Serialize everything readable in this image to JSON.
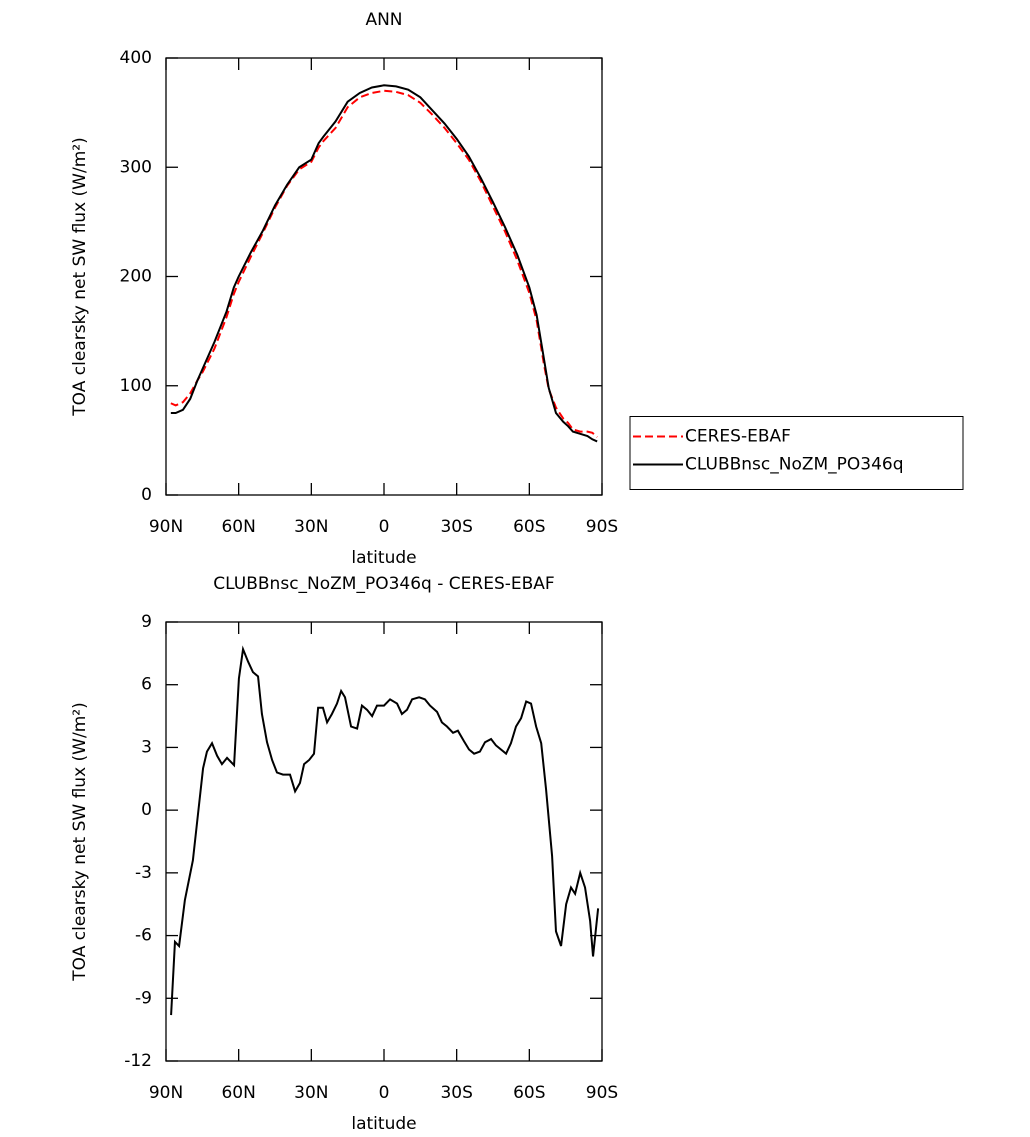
{
  "chart_data": [
    {
      "type": "line",
      "title": "ANN",
      "xlabel": "latitude",
      "ylabel": "TOA clearsky net SW flux (W/m²)",
      "x": [
        88,
        86,
        83,
        80,
        77,
        75,
        70,
        65,
        62,
        60,
        55,
        50,
        45,
        40,
        35,
        30,
        27,
        25,
        20,
        15,
        10,
        5,
        0,
        -5,
        -10,
        -15,
        -20,
        -25,
        -30,
        -35,
        -40,
        -45,
        -50,
        -55,
        -60,
        -63,
        -66,
        -68,
        -71,
        -74,
        -76,
        -78,
        -81,
        -84,
        -86,
        -88
      ],
      "series": [
        {
          "name": "CERES-EBAF",
          "color": "#ff0000",
          "line_style": "dashed",
          "values": [
            84,
            82,
            85,
            93,
            105,
            112,
            134,
            163,
            184,
            195,
            218,
            240,
            263,
            283,
            298,
            305,
            318,
            324,
            336,
            355,
            364,
            368,
            370,
            369,
            366,
            359,
            348,
            336,
            322,
            307,
            287,
            264,
            241,
            215,
            185,
            160,
            120,
            97,
            80,
            70,
            66,
            60,
            58,
            58,
            57,
            53
          ]
        },
        {
          "name": "CLUBBnsc_NoZM_PO346q",
          "color": "#000000",
          "line_style": "solid",
          "values": [
            75,
            75,
            78,
            88,
            105,
            115,
            140,
            168,
            190,
            200,
            222,
            242,
            265,
            284,
            300,
            307,
            322,
            328,
            342,
            360,
            368,
            373,
            375,
            374,
            371,
            364,
            352,
            340,
            326,
            310,
            290,
            268,
            245,
            220,
            190,
            165,
            125,
            98,
            75,
            67,
            63,
            58,
            56,
            54,
            51,
            49
          ]
        }
      ],
      "xlim": [
        90,
        -90
      ],
      "xticks": [
        {
          "value": 90,
          "label": "90N"
        },
        {
          "value": 60,
          "label": "60N"
        },
        {
          "value": 30,
          "label": "30N"
        },
        0,
        {
          "value": -30,
          "label": "30S"
        },
        {
          "value": -60,
          "label": "60S"
        },
        {
          "value": -90,
          "label": "90S"
        }
      ],
      "ylim": [
        0,
        400
      ],
      "yticks": [
        0,
        100,
        200,
        300,
        400
      ],
      "grid": false,
      "legend": "right"
    },
    {
      "type": "line",
      "title": "CLUBBnsc_NoZM_PO346q - CERES-EBAF",
      "xlabel": "latitude",
      "ylabel": "TOA clearsky net SW flux (W/m²)",
      "x": [
        87.9,
        86.3,
        84.6,
        82.2,
        78.9,
        76.8,
        74.7,
        73.1,
        71.0,
        68.9,
        66.9,
        64.8,
        61.9,
        59.9,
        58.2,
        56.1,
        54.1,
        52.0,
        50.4,
        48.3,
        46.2,
        44.2,
        41.7,
        38.8,
        36.7,
        34.7,
        33.0,
        30.9,
        28.9,
        27.2,
        25.2,
        23.5,
        21.5,
        19.4,
        17.7,
        16.1,
        13.6,
        11.1,
        9.1,
        7.0,
        4.9,
        2.9,
        0,
        -2.5,
        -5.4,
        -7.4,
        -9.5,
        -11.6,
        -14.5,
        -16.9,
        -19.0,
        -21.9,
        -23.9,
        -26.0,
        -28.5,
        -30.5,
        -33.0,
        -35.1,
        -37.2,
        -39.6,
        -41.7,
        -44.2,
        -46.2,
        -48.3,
        -50.4,
        -52.4,
        -54.5,
        -56.6,
        -58.7,
        -60.7,
        -62.8,
        -64.9,
        -66.9,
        -69.4,
        -71.0,
        -73.1,
        -75.2,
        -77.2,
        -78.9,
        -81.0,
        -83.0,
        -85.1,
        -86.3,
        -88.4
      ],
      "values": [
        -9.8,
        -6.3,
        -6.5,
        -4.3,
        -2.4,
        -0.2,
        2.0,
        2.8,
        3.2,
        2.6,
        2.2,
        2.5,
        2.15,
        6.3,
        7.7,
        7.1,
        6.6,
        6.4,
        4.6,
        3.25,
        2.4,
        1.8,
        1.7,
        1.7,
        0.9,
        1.3,
        2.2,
        2.4,
        2.7,
        4.9,
        4.9,
        4.2,
        4.6,
        5.1,
        5.7,
        5.4,
        4.0,
        3.9,
        5.0,
        4.8,
        4.5,
        5.0,
        5.0,
        5.3,
        5.1,
        4.6,
        4.8,
        5.3,
        5.4,
        5.3,
        5.0,
        4.7,
        4.2,
        4.0,
        3.7,
        3.8,
        3.3,
        2.9,
        2.7,
        2.8,
        3.25,
        3.4,
        3.1,
        2.9,
        2.7,
        3.2,
        4.0,
        4.4,
        5.2,
        5.1,
        4.0,
        3.2,
        1.0,
        -2.2,
        -5.8,
        -6.5,
        -4.5,
        -3.7,
        -4.0,
        -3.0,
        -3.7,
        -5.3,
        -7.0,
        -4.7
      ],
      "color": "#000000",
      "line_style": "solid",
      "xlim": [
        90,
        -90
      ],
      "xticks": [
        {
          "value": 90,
          "label": "90N"
        },
        {
          "value": 60,
          "label": "60N"
        },
        {
          "value": 30,
          "label": "30N"
        },
        0,
        {
          "value": -30,
          "label": "30S"
        },
        {
          "value": -60,
          "label": "60S"
        },
        {
          "value": -90,
          "label": "90S"
        }
      ],
      "ylim": [
        -12,
        9
      ],
      "yticks": [
        -12,
        -9,
        -6,
        -3,
        0,
        3,
        6,
        9
      ],
      "grid": false
    }
  ]
}
